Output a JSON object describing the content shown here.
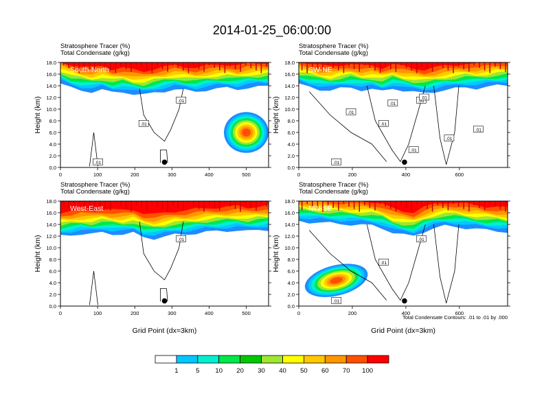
{
  "title": "2014-01-25_06:00:00",
  "colors": {
    "levels": [
      "#ffffff",
      "#1e8cff",
      "#00c8ff",
      "#00f0d0",
      "#00e84a",
      "#00c800",
      "#a0e632",
      "#ffff00",
      "#ffc800",
      "#ff9600",
      "#ff5000",
      "#ff0000"
    ]
  },
  "colorbar": {
    "labels": [
      "1",
      "5",
      "10",
      "20",
      "30",
      "40",
      "50",
      "60",
      "70",
      "100"
    ]
  },
  "footnote": "Total Condensate Contours: .01 to .01 by .000",
  "chart_data": [
    {
      "type": "contour",
      "panel_name": "South-North",
      "top_labels": [
        "Stratosphere Tracer   (%)",
        "Total Condensate   (g/kg)"
      ],
      "ylabel": "Height (km)",
      "xlabel": "",
      "xlim": [
        0,
        560
      ],
      "ylim": [
        0,
        18
      ],
      "xticks": [
        0,
        100,
        200,
        300,
        400,
        500
      ],
      "yticks": [
        0.0,
        2.0,
        4.0,
        6.0,
        8.0,
        10.0,
        12.0,
        14.0,
        16.0,
        18.0
      ],
      "tracer_base_km": [
        15.0,
        14.2,
        13.8,
        13.6,
        13.9,
        13.4,
        13.6,
        13.2,
        13.0,
        13.4,
        13.7,
        14.0,
        13.8,
        13.6,
        13.9,
        14.1,
        14.2,
        14.0,
        14.3,
        14.4,
        14.5
      ],
      "feature": {
        "x": [
          440,
          560
        ],
        "y": [
          2.5,
          9.5
        ],
        "peak": 70
      },
      "contour_labels": [
        ".01",
        ".01",
        ".01"
      ],
      "marker_x": 280
    },
    {
      "type": "contour",
      "panel_name": "SW-NE",
      "top_labels": [
        "Stratosphere Tracer   (%)",
        "Total Condensate   (g/kg)"
      ],
      "ylabel": "Height (km)",
      "xlabel": "",
      "xlim": [
        0,
        780
      ],
      "ylim": [
        0,
        18
      ],
      "xticks": [
        0,
        200,
        400,
        600
      ],
      "yticks": [
        0.0,
        2.0,
        4.0,
        6.0,
        8.0,
        10.0,
        12.0,
        14.0,
        16.0,
        18.0
      ],
      "tracer_base_km": [
        14.8,
        14.4,
        14.0,
        13.8,
        14.1,
        14.3,
        13.9,
        14.0,
        13.6,
        14.2,
        13.8,
        13.5,
        13.3,
        13.6,
        13.9,
        14.1,
        14.3,
        14.2,
        14.4,
        14.6,
        14.7
      ],
      "feature": null,
      "contour_labels": [
        ".01",
        ".01",
        ".01",
        ".01",
        ".01",
        ".01",
        ".01",
        ".01",
        ".01"
      ],
      "marker_x": 395
    },
    {
      "type": "contour",
      "panel_name": "West-East",
      "top_labels": [
        "Stratosphere Tracer   (%)",
        "Total Condensate   (g/kg)"
      ],
      "ylabel": "Height (km)",
      "xlabel": "Grid Point (dx=3km)",
      "xlim": [
        0,
        560
      ],
      "ylim": [
        0,
        18
      ],
      "xticks": [
        0,
        100,
        200,
        300,
        400,
        500
      ],
      "yticks": [
        0.0,
        2.0,
        4.0,
        6.0,
        8.0,
        10.0,
        12.0,
        14.0,
        16.0,
        18.0
      ],
      "tracer_base_km": [
        12.6,
        12.8,
        13.0,
        12.9,
        13.2,
        13.0,
        12.9,
        13.1,
        12.4,
        12.2,
        12.5,
        12.8,
        12.9,
        13.1,
        13.3,
        13.4,
        13.5,
        13.6,
        13.4,
        13.6,
        13.7
      ],
      "feature": null,
      "contour_labels": [
        ".01"
      ],
      "marker_x": 280
    },
    {
      "type": "contour",
      "panel_name": "NW-SE",
      "top_labels": [
        "Stratosphere Tracer   (%)",
        "Total Condensate   (g/kg)"
      ],
      "ylabel": "Height (km)",
      "xlabel": "Grid Point (dx=3km)",
      "xlim": [
        0,
        780
      ],
      "ylim": [
        0,
        18
      ],
      "xticks": [
        0,
        200,
        400,
        600
      ],
      "yticks": [
        0.0,
        2.0,
        4.0,
        6.0,
        8.0,
        10.0,
        12.0,
        14.0,
        16.0,
        18.0
      ],
      "tracer_base_km": [
        15.2,
        15.0,
        14.9,
        14.8,
        14.7,
        14.6,
        14.5,
        14.4,
        14.0,
        13.2,
        12.8,
        12.6,
        13.4,
        14.0,
        14.3,
        14.2,
        14.0,
        13.8,
        13.6,
        13.5,
        13.3
      ],
      "feature": {
        "x": [
          20,
          260
        ],
        "y": [
          1.8,
          7.0
        ],
        "peak": 70
      },
      "contour_labels": [
        ".01",
        ".01",
        ".01"
      ],
      "marker_x": 395
    }
  ]
}
